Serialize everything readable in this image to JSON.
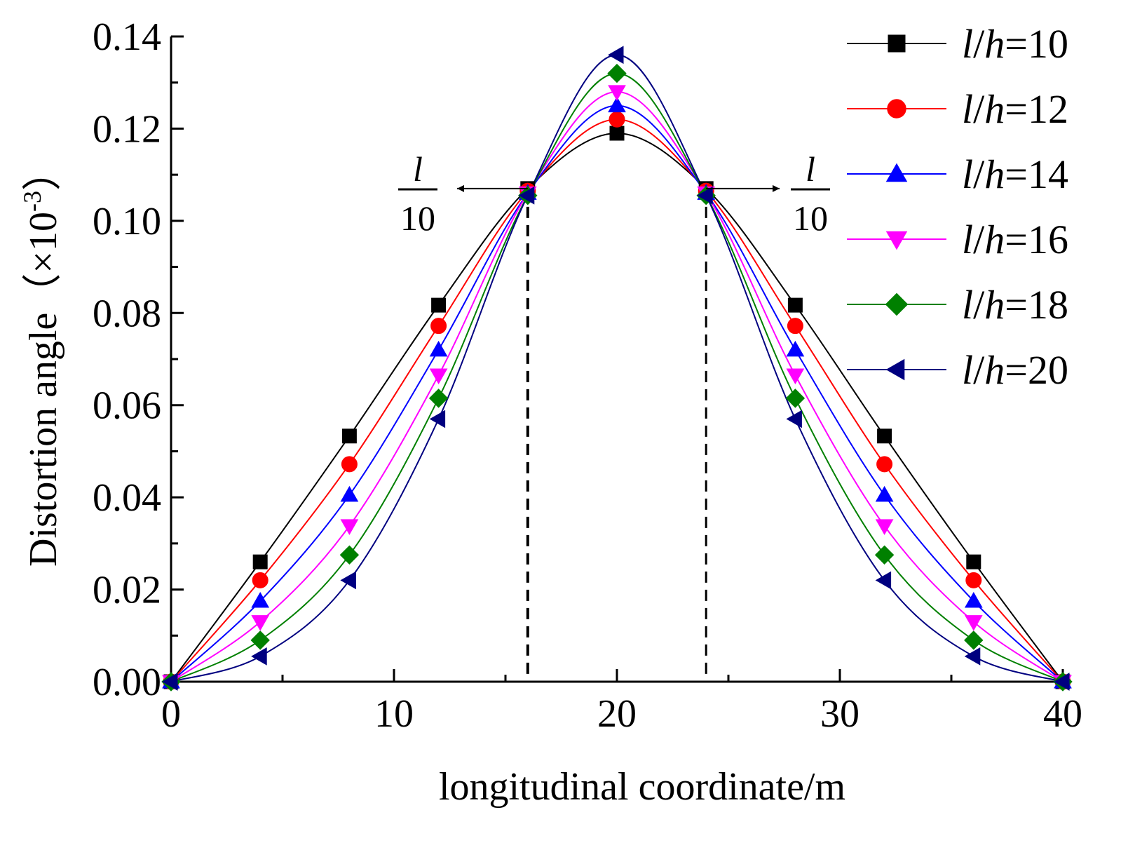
{
  "chart_data": {
    "type": "line",
    "xlabel": "longitudinal coordinate/m",
    "ylabel": {
      "text": "Distortion angle",
      "unit_prefix": "（×10",
      "unit_exponent": "-3",
      "unit_suffix": "）"
    },
    "xlim": [
      0,
      40
    ],
    "ylim": [
      0,
      0.14
    ],
    "xticks": [
      0,
      10,
      20,
      30,
      40
    ],
    "xtick_labels": [
      "0",
      "10",
      "20",
      "30",
      "40"
    ],
    "yticks": [
      0.0,
      0.02,
      0.04,
      0.06,
      0.08,
      0.1,
      0.12,
      0.14
    ],
    "ytick_labels": [
      "0.00",
      "0.02",
      "0.04",
      "0.06",
      "0.08",
      "0.10",
      "0.12",
      "0.14"
    ],
    "legend_position": "top-right",
    "x": [
      0,
      4,
      8,
      12,
      16,
      20,
      24,
      28,
      32,
      36,
      40
    ],
    "series": [
      {
        "name": "l/h=10",
        "color": "#000000",
        "marker": "square",
        "values": [
          0,
          0.026,
          0.0533,
          0.0817,
          0.107,
          0.119,
          0.107,
          0.0817,
          0.0533,
          0.026,
          0
        ]
      },
      {
        "name": "l/h=12",
        "color": "#ff0000",
        "marker": "circle",
        "values": [
          0,
          0.022,
          0.0472,
          0.0772,
          0.1065,
          0.122,
          0.1065,
          0.0772,
          0.0472,
          0.022,
          0
        ]
      },
      {
        "name": "l/h=14",
        "color": "#0000ff",
        "marker": "triangle-up",
        "values": [
          0,
          0.0175,
          0.0405,
          0.072,
          0.106,
          0.125,
          0.106,
          0.072,
          0.0405,
          0.0175,
          0
        ]
      },
      {
        "name": "l/h=16",
        "color": "#ff00ff",
        "marker": "triangle-down",
        "values": [
          0,
          0.013,
          0.0338,
          0.0665,
          0.106,
          0.128,
          0.106,
          0.0665,
          0.0338,
          0.013,
          0
        ]
      },
      {
        "name": "l/h=18",
        "color": "#008000",
        "marker": "diamond",
        "values": [
          0,
          0.009,
          0.0275,
          0.0615,
          0.1055,
          0.132,
          0.1055,
          0.0615,
          0.0275,
          0.009,
          0
        ]
      },
      {
        "name": "l/h=20",
        "color": "#000080",
        "marker": "triangle-left",
        "values": [
          0,
          0.0055,
          0.022,
          0.057,
          0.1055,
          0.136,
          0.1055,
          0.057,
          0.022,
          0.0055,
          0
        ]
      }
    ],
    "annotations": {
      "vlines": [
        16,
        24
      ],
      "arrow_y": 0.107,
      "fraction_numerator": "l",
      "fraction_denominator": "10"
    }
  }
}
